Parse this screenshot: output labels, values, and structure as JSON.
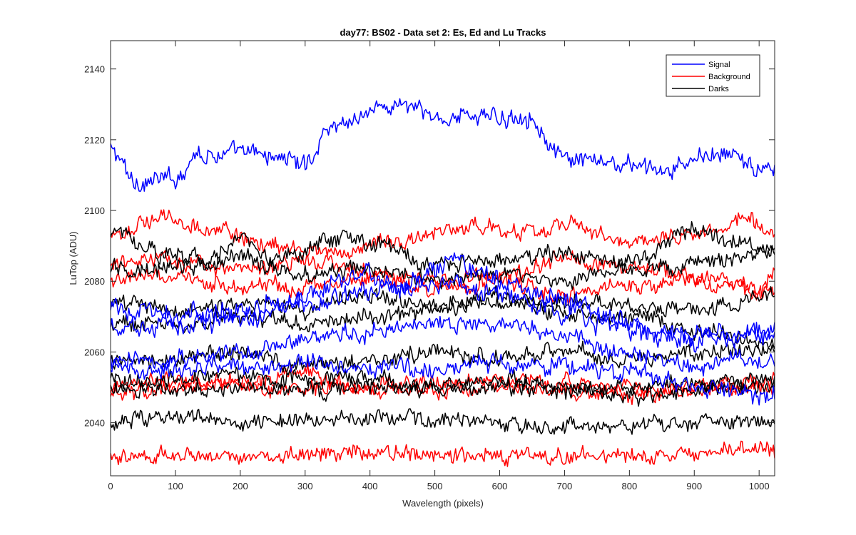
{
  "chart_data": {
    "type": "line",
    "title": "day77: BS02 - Data set 2: Es, Ed and Lu Tracks",
    "xlabel": "Wavelength (pixels)",
    "ylabel": "LuTop (ADU)",
    "xlim": [
      0,
      1024
    ],
    "ylim": [
      2025,
      2148
    ],
    "x_ticks": [
      0,
      100,
      200,
      300,
      400,
      500,
      600,
      700,
      800,
      900,
      1000
    ],
    "y_ticks": [
      2040,
      2060,
      2080,
      2100,
      2120,
      2140
    ],
    "grid": false,
    "legend_position": "top-right",
    "legend": [
      {
        "label": "Signal",
        "color": "#0000ff"
      },
      {
        "label": "Background",
        "color": "#ff0000"
      },
      {
        "label": "Darks",
        "color": "#000000"
      }
    ],
    "series": [
      {
        "group": "Signal",
        "color": "#0000ff",
        "noise": 2.0,
        "anchors": [
          [
            0,
            2117
          ],
          [
            40,
            2108
          ],
          [
            100,
            2109
          ],
          [
            130,
            2116
          ],
          [
            220,
            2116
          ],
          [
            270,
            2115
          ],
          [
            300,
            2113
          ],
          [
            340,
            2124
          ],
          [
            420,
            2129
          ],
          [
            450,
            2130
          ],
          [
            500,
            2126
          ],
          [
            560,
            2127
          ],
          [
            600,
            2126
          ],
          [
            640,
            2127
          ],
          [
            700,
            2114
          ],
          [
            800,
            2113
          ],
          [
            860,
            2111
          ],
          [
            920,
            2116
          ],
          [
            970,
            2115
          ],
          [
            1000,
            2111
          ],
          [
            1024,
            2111
          ]
        ]
      },
      {
        "group": "Signal",
        "color": "#0000ff",
        "noise": 2.2,
        "anchors": [
          [
            0,
            2072
          ],
          [
            100,
            2070
          ],
          [
            200,
            2072
          ],
          [
            300,
            2076
          ],
          [
            380,
            2083
          ],
          [
            450,
            2077
          ],
          [
            530,
            2085
          ],
          [
            600,
            2080
          ],
          [
            700,
            2075
          ],
          [
            800,
            2068
          ],
          [
            900,
            2065
          ],
          [
            1024,
            2064
          ]
        ]
      },
      {
        "group": "Signal",
        "color": "#0000ff",
        "noise": 2.2,
        "anchors": [
          [
            0,
            2066
          ],
          [
            100,
            2068
          ],
          [
            200,
            2070
          ],
          [
            300,
            2073
          ],
          [
            400,
            2078
          ],
          [
            500,
            2080
          ],
          [
            600,
            2076
          ],
          [
            700,
            2071
          ],
          [
            800,
            2066
          ],
          [
            900,
            2063
          ],
          [
            1024,
            2066
          ]
        ]
      },
      {
        "group": "Signal",
        "color": "#0000ff",
        "noise": 2.0,
        "anchors": [
          [
            0,
            2057
          ],
          [
            100,
            2058
          ],
          [
            200,
            2060
          ],
          [
            300,
            2063
          ],
          [
            400,
            2066
          ],
          [
            500,
            2069
          ],
          [
            600,
            2068
          ],
          [
            700,
            2064
          ],
          [
            800,
            2059
          ],
          [
            900,
            2057
          ],
          [
            1024,
            2058
          ]
        ]
      },
      {
        "group": "Signal",
        "color": "#0000ff",
        "noise": 2.0,
        "anchors": [
          [
            0,
            2055
          ],
          [
            100,
            2055
          ],
          [
            200,
            2056
          ],
          [
            300,
            2057
          ],
          [
            400,
            2056
          ],
          [
            500,
            2055
          ],
          [
            600,
            2057
          ],
          [
            700,
            2056
          ],
          [
            800,
            2054
          ],
          [
            900,
            2050
          ],
          [
            1024,
            2048
          ]
        ]
      },
      {
        "group": "Background",
        "color": "#ff0000",
        "noise": 1.8,
        "anchors": [
          [
            0,
            2092
          ],
          [
            70,
            2098
          ],
          [
            150,
            2095
          ],
          [
            250,
            2090
          ],
          [
            350,
            2088
          ],
          [
            450,
            2092
          ],
          [
            550,
            2095
          ],
          [
            650,
            2094
          ],
          [
            700,
            2096
          ],
          [
            800,
            2092
          ],
          [
            900,
            2093
          ],
          [
            980,
            2098
          ],
          [
            1024,
            2092
          ]
        ]
      },
      {
        "group": "Background",
        "color": "#ff0000",
        "noise": 1.8,
        "anchors": [
          [
            0,
            2085
          ],
          [
            100,
            2086
          ],
          [
            200,
            2084
          ],
          [
            300,
            2086
          ],
          [
            400,
            2082
          ],
          [
            500,
            2080
          ],
          [
            600,
            2081
          ],
          [
            700,
            2086
          ],
          [
            800,
            2084
          ],
          [
            900,
            2082
          ],
          [
            1000,
            2078
          ],
          [
            1024,
            2082
          ]
        ]
      },
      {
        "group": "Background",
        "color": "#ff0000",
        "noise": 1.8,
        "anchors": [
          [
            0,
            2080
          ],
          [
            100,
            2081
          ],
          [
            200,
            2078
          ],
          [
            300,
            2079
          ],
          [
            400,
            2081
          ],
          [
            500,
            2078
          ],
          [
            600,
            2080
          ],
          [
            700,
            2076
          ],
          [
            800,
            2079
          ],
          [
            900,
            2080
          ],
          [
            1024,
            2076
          ]
        ]
      },
      {
        "group": "Background",
        "color": "#ff0000",
        "noise": 1.8,
        "anchors": [
          [
            0,
            2050
          ],
          [
            100,
            2052
          ],
          [
            200,
            2051
          ],
          [
            300,
            2054
          ],
          [
            400,
            2050
          ],
          [
            500,
            2051
          ],
          [
            600,
            2052
          ],
          [
            700,
            2051
          ],
          [
            800,
            2050
          ],
          [
            900,
            2050
          ],
          [
            1024,
            2052
          ]
        ]
      },
      {
        "group": "Background",
        "color": "#ff0000",
        "noise": 1.8,
        "anchors": [
          [
            0,
            2048
          ],
          [
            100,
            2050
          ],
          [
            200,
            2052
          ],
          [
            250,
            2048
          ],
          [
            300,
            2050
          ],
          [
            400,
            2050
          ],
          [
            500,
            2049
          ],
          [
            600,
            2050
          ],
          [
            700,
            2049
          ],
          [
            800,
            2048
          ],
          [
            900,
            2049
          ],
          [
            1024,
            2050
          ]
        ]
      },
      {
        "group": "Background",
        "color": "#ff0000",
        "noise": 1.7,
        "anchors": [
          [
            0,
            2031
          ],
          [
            100,
            2031
          ],
          [
            200,
            2030
          ],
          [
            300,
            2031
          ],
          [
            400,
            2032
          ],
          [
            500,
            2031
          ],
          [
            600,
            2031
          ],
          [
            700,
            2031
          ],
          [
            800,
            2031
          ],
          [
            900,
            2032
          ],
          [
            1000,
            2033
          ],
          [
            1024,
            2032
          ]
        ]
      },
      {
        "group": "Darks",
        "color": "#000000",
        "noise": 1.8,
        "anchors": [
          [
            0,
            2094
          ],
          [
            80,
            2088
          ],
          [
            150,
            2086
          ],
          [
            200,
            2092
          ],
          [
            260,
            2086
          ],
          [
            350,
            2092
          ],
          [
            420,
            2090
          ],
          [
            500,
            2085
          ],
          [
            600,
            2086
          ],
          [
            700,
            2088
          ],
          [
            800,
            2085
          ],
          [
            900,
            2094
          ],
          [
            1024,
            2089
          ]
        ]
      },
      {
        "group": "Darks",
        "color": "#000000",
        "noise": 1.8,
        "anchors": [
          [
            0,
            2083
          ],
          [
            100,
            2084
          ],
          [
            200,
            2086
          ],
          [
            300,
            2082
          ],
          [
            400,
            2084
          ],
          [
            500,
            2080
          ],
          [
            600,
            2082
          ],
          [
            700,
            2080
          ],
          [
            800,
            2083
          ],
          [
            900,
            2085
          ],
          [
            1024,
            2088
          ]
        ]
      },
      {
        "group": "Darks",
        "color": "#000000",
        "noise": 1.8,
        "anchors": [
          [
            0,
            2074
          ],
          [
            100,
            2072
          ],
          [
            200,
            2074
          ],
          [
            300,
            2072
          ],
          [
            400,
            2076
          ],
          [
            500,
            2073
          ],
          [
            600,
            2076
          ],
          [
            700,
            2074
          ],
          [
            800,
            2073
          ],
          [
            900,
            2072
          ],
          [
            1024,
            2076
          ]
        ]
      },
      {
        "group": "Darks",
        "color": "#000000",
        "noise": 1.8,
        "anchors": [
          [
            0,
            2068
          ],
          [
            100,
            2068
          ],
          [
            200,
            2070
          ],
          [
            300,
            2068
          ],
          [
            400,
            2070
          ],
          [
            500,
            2072
          ],
          [
            600,
            2074
          ],
          [
            700,
            2071
          ],
          [
            800,
            2070
          ],
          [
            900,
            2066
          ],
          [
            1024,
            2062
          ]
        ]
      },
      {
        "group": "Darks",
        "color": "#000000",
        "noise": 1.8,
        "anchors": [
          [
            0,
            2058
          ],
          [
            100,
            2058
          ],
          [
            200,
            2060
          ],
          [
            300,
            2056
          ],
          [
            400,
            2058
          ],
          [
            500,
            2060
          ],
          [
            600,
            2058
          ],
          [
            700,
            2060
          ],
          [
            800,
            2058
          ],
          [
            900,
            2060
          ],
          [
            1024,
            2060
          ]
        ]
      },
      {
        "group": "Darks",
        "color": "#000000",
        "noise": 1.8,
        "anchors": [
          [
            0,
            2052
          ],
          [
            100,
            2052
          ],
          [
            200,
            2054
          ],
          [
            300,
            2052
          ],
          [
            400,
            2052
          ],
          [
            500,
            2051
          ],
          [
            600,
            2052
          ],
          [
            700,
            2050
          ],
          [
            800,
            2050
          ],
          [
            900,
            2051
          ],
          [
            1024,
            2052
          ]
        ]
      },
      {
        "group": "Darks",
        "color": "#000000",
        "noise": 1.8,
        "anchors": [
          [
            0,
            2049
          ],
          [
            100,
            2050
          ],
          [
            200,
            2050
          ],
          [
            300,
            2049
          ],
          [
            400,
            2050
          ],
          [
            500,
            2049
          ],
          [
            600,
            2050
          ],
          [
            700,
            2049
          ],
          [
            800,
            2048
          ],
          [
            900,
            2049
          ],
          [
            1024,
            2050
          ]
        ]
      },
      {
        "group": "Darks",
        "color": "#000000",
        "noise": 1.7,
        "anchors": [
          [
            0,
            2040
          ],
          [
            100,
            2042
          ],
          [
            200,
            2040
          ],
          [
            300,
            2041
          ],
          [
            400,
            2041
          ],
          [
            500,
            2041
          ],
          [
            600,
            2040
          ],
          [
            700,
            2039
          ],
          [
            800,
            2039
          ],
          [
            900,
            2040
          ],
          [
            1024,
            2041
          ]
        ]
      }
    ]
  }
}
